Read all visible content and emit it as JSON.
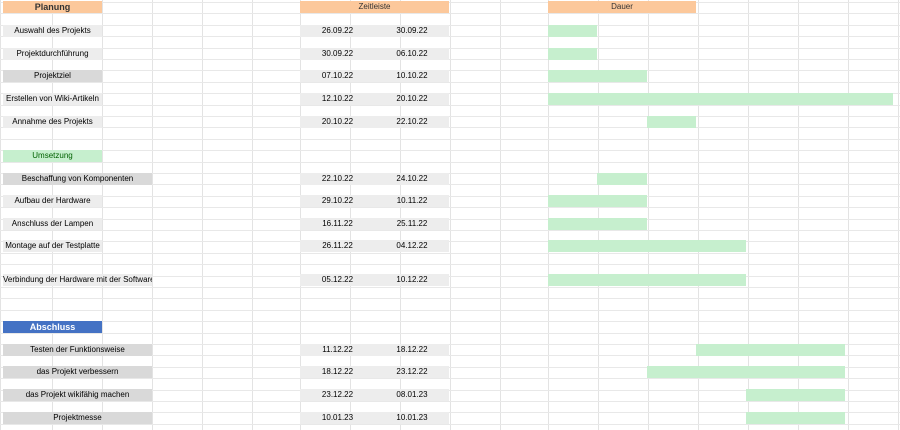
{
  "headers": {
    "timeline": "Zeitleiste",
    "duration": "Dauer"
  },
  "sections": [
    {
      "title": "Planung",
      "tasks": [
        {
          "name": "Auswahl des Projekts",
          "start": "26.09.22",
          "end": "30.09.22"
        },
        {
          "name": "Projektdurchführung",
          "start": "30.09.22",
          "end": "06.10.22"
        },
        {
          "name": "Projektziel",
          "start": "07.10.22",
          "end": "10.10.22"
        },
        {
          "name": "Erstellen von Wiki-Artikeln",
          "start": "12.10.22",
          "end": "20.10.22"
        },
        {
          "name": "Annahme des Projekts",
          "start": "20.10.22",
          "end": "22.10.22"
        }
      ]
    },
    {
      "title": "Umsetzung",
      "tasks": [
        {
          "name": "Beschaffung von Komponenten",
          "start": "22.10.22",
          "end": "24.10.22"
        },
        {
          "name": "Aufbau der Hardware",
          "start": "29.10.22",
          "end": "10.11.22"
        },
        {
          "name": "Anschluss der Lampen",
          "start": "16.11.22",
          "end": "25.11.22"
        },
        {
          "name": "Montage auf der Testplatte",
          "start": "26.11.22",
          "end": "04.12.22"
        },
        {
          "name": "Verbindung der Hardware mit der Software",
          "start": "05.12.22",
          "end": "10.12.22"
        }
      ]
    },
    {
      "title": "Abschluss",
      "tasks": [
        {
          "name": "Testen der Funktionsweise",
          "start": "11.12.22",
          "end": "18.12.22"
        },
        {
          "name": "das Projekt verbessern",
          "start": "18.12.22",
          "end": "23.12.22"
        },
        {
          "name": "das Projekt wikifähig machen",
          "start": "23.12.22",
          "end": "08.01.23"
        },
        {
          "name": "Projektmesse",
          "start": "10.01.23",
          "end": "10.01.23"
        }
      ]
    }
  ]
}
